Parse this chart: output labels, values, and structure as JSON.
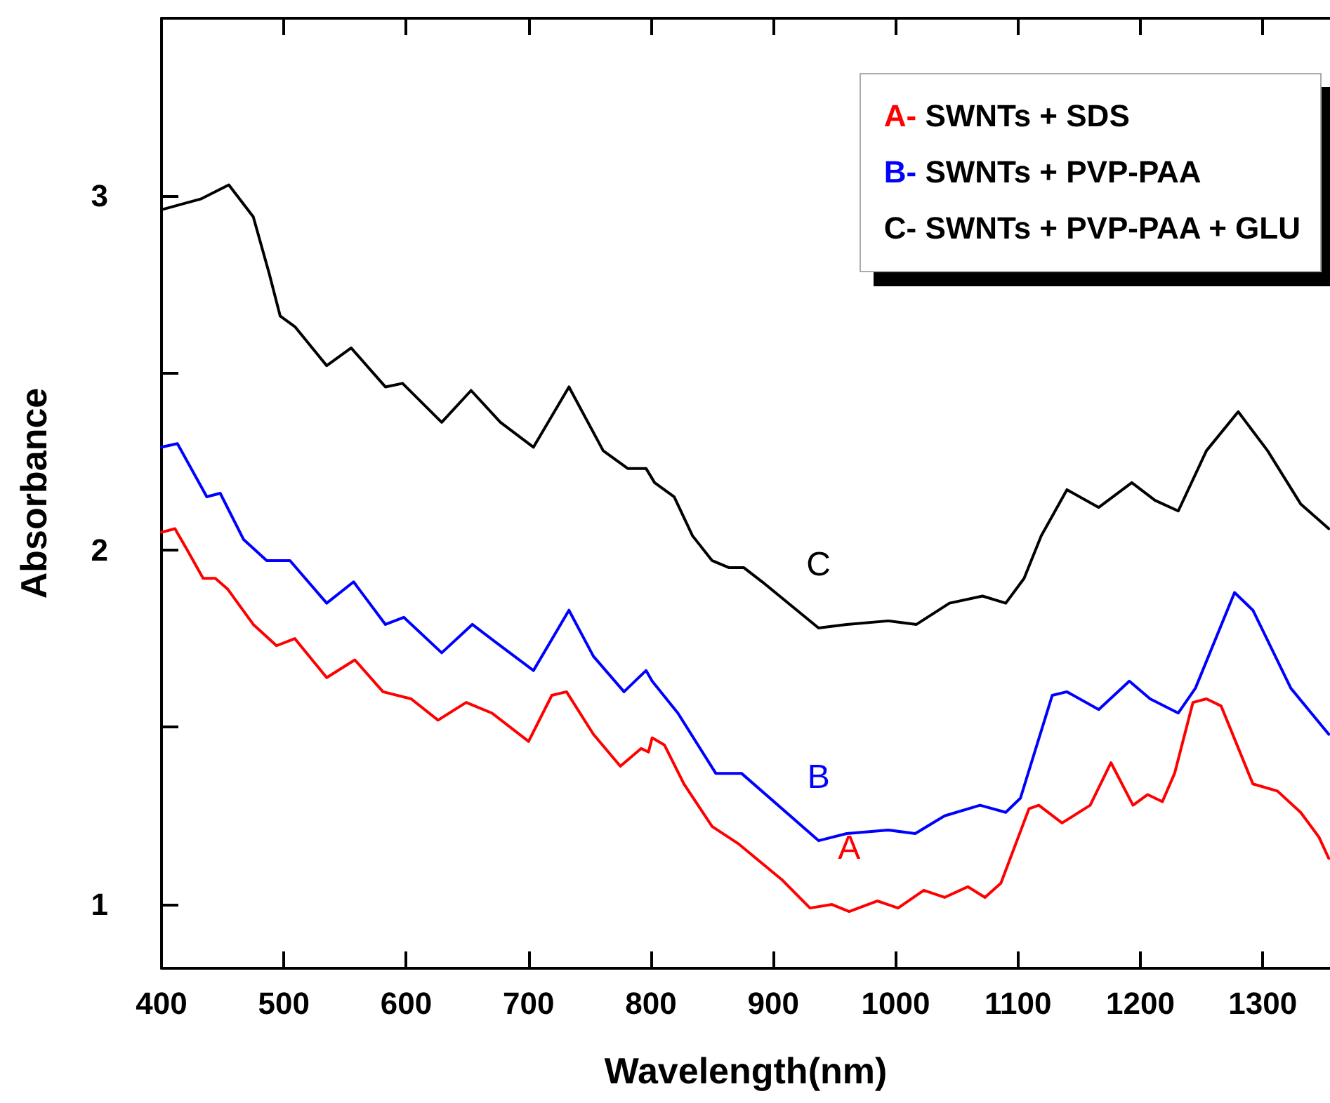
{
  "chart_data": {
    "type": "line",
    "xlabel": "Wavelength(nm)",
    "ylabel": "Absorbance",
    "xlim": [
      400,
      1355
    ],
    "xticks": [
      400,
      500,
      600,
      700,
      800,
      900,
      1000,
      1100,
      1200,
      1300
    ],
    "ylim": [
      0.82,
      3.5
    ],
    "yticks": [
      1,
      {
        "value": 1.5,
        "label": null
      },
      2,
      {
        "value": 2.5,
        "label": null
      },
      3
    ],
    "legend": "top right",
    "grid": false,
    "marker": "none",
    "line_style": "solid",
    "annotations": [
      "A",
      "B",
      "C"
    ],
    "series": [
      {
        "name": "A- SWNTs + SDS",
        "color": "#ff0000",
        "x": [
          400,
          411,
          421,
          434,
          444,
          454,
          475,
          494,
          509,
          535,
          558,
          581,
          604,
          626,
          649,
          670,
          700,
          719,
          731,
          753,
          775,
          792,
          798,
          801,
          811,
          827,
          850,
          872,
          907,
          930,
          948,
          962,
          985,
          1002,
          1023,
          1040,
          1059,
          1073,
          1086,
          1109,
          1117,
          1136,
          1159,
          1176,
          1194,
          1206,
          1218,
          1228,
          1243,
          1254,
          1266,
          1292,
          1312,
          1331,
          1346,
          1354
        ],
        "values": [
          2.05,
          2.06,
          2.0,
          1.92,
          1.92,
          1.89,
          1.79,
          1.73,
          1.75,
          1.64,
          1.69,
          1.6,
          1.58,
          1.52,
          1.57,
          1.54,
          1.46,
          1.59,
          1.6,
          1.48,
          1.39,
          1.44,
          1.43,
          1.47,
          1.45,
          1.34,
          1.22,
          1.17,
          1.07,
          0.99,
          1.0,
          0.98,
          1.01,
          0.99,
          1.04,
          1.02,
          1.05,
          1.02,
          1.06,
          1.27,
          1.28,
          1.23,
          1.28,
          1.4,
          1.28,
          1.31,
          1.29,
          1.37,
          1.57,
          1.58,
          1.56,
          1.34,
          1.32,
          1.26,
          1.19,
          1.13
        ]
      },
      {
        "name": "B- SWNTs + PVP-PAA",
        "color": "#0000ff",
        "x": [
          400,
          413,
          437,
          448,
          467,
          486,
          505,
          535,
          557,
          583,
          598,
          629,
          654,
          673,
          704,
          733,
          753,
          778,
          796,
          801,
          822,
          853,
          874,
          937,
          960,
          994,
          1016,
          1040,
          1069,
          1090,
          1102,
          1128,
          1140,
          1166,
          1191,
          1208,
          1231,
          1245,
          1277,
          1292,
          1323,
          1354
        ],
        "values": [
          2.29,
          2.3,
          2.15,
          2.16,
          2.03,
          1.97,
          1.97,
          1.85,
          1.91,
          1.79,
          1.81,
          1.71,
          1.79,
          1.74,
          1.66,
          1.83,
          1.7,
          1.6,
          1.66,
          1.63,
          1.54,
          1.37,
          1.37,
          1.18,
          1.2,
          1.21,
          1.2,
          1.25,
          1.28,
          1.26,
          1.3,
          1.59,
          1.6,
          1.55,
          1.63,
          1.58,
          1.54,
          1.61,
          1.88,
          1.83,
          1.61,
          1.48
        ]
      },
      {
        "name": "C- SWNTs + PVP-PAA + GLU",
        "color": "#000000",
        "x": [
          400,
          432,
          455,
          475,
          488,
          497,
          509,
          535,
          555,
          583,
          597,
          629,
          653,
          677,
          704,
          733,
          761,
          781,
          796,
          803,
          819,
          834,
          850,
          864,
          876,
          891,
          937,
          960,
          994,
          1017,
          1044,
          1071,
          1090,
          1105,
          1119,
          1140,
          1166,
          1193,
          1212,
          1231,
          1254,
          1280,
          1304,
          1331,
          1354
        ],
        "values": [
          2.96,
          2.99,
          3.03,
          2.94,
          2.78,
          2.66,
          2.63,
          2.52,
          2.57,
          2.46,
          2.47,
          2.36,
          2.45,
          2.36,
          2.29,
          2.46,
          2.28,
          2.23,
          2.23,
          2.19,
          2.15,
          2.04,
          1.97,
          1.95,
          1.95,
          1.91,
          1.78,
          1.79,
          1.8,
          1.79,
          1.85,
          1.87,
          1.85,
          1.92,
          2.04,
          2.17,
          2.12,
          2.19,
          2.14,
          2.11,
          2.28,
          2.39,
          2.28,
          2.13,
          2.06
        ]
      }
    ]
  }
}
